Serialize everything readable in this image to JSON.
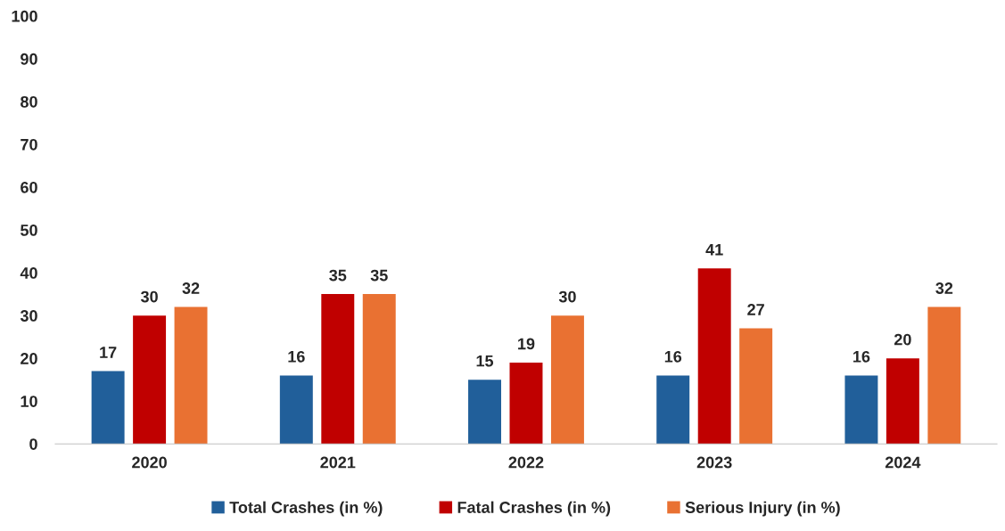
{
  "chart_data": {
    "type": "bar",
    "categories": [
      "2020",
      "2021",
      "2022",
      "2023",
      "2024"
    ],
    "series": [
      {
        "name": "Total Crashes (in %)",
        "color": "#215f9a",
        "values": [
          17,
          16,
          15,
          16,
          16
        ]
      },
      {
        "name": "Fatal Crashes (in %)",
        "color": "#c00000",
        "values": [
          30,
          35,
          19,
          41,
          20
        ]
      },
      {
        "name": "Serious Injury (in %)",
        "color": "#e97132",
        "values": [
          32,
          35,
          30,
          27,
          32
        ]
      }
    ],
    "ylim": [
      0,
      100
    ],
    "yticks": [
      0,
      10,
      20,
      30,
      40,
      50,
      60,
      70,
      80,
      90,
      100
    ],
    "data_labels": true,
    "grid": false,
    "legend": "bottom"
  }
}
